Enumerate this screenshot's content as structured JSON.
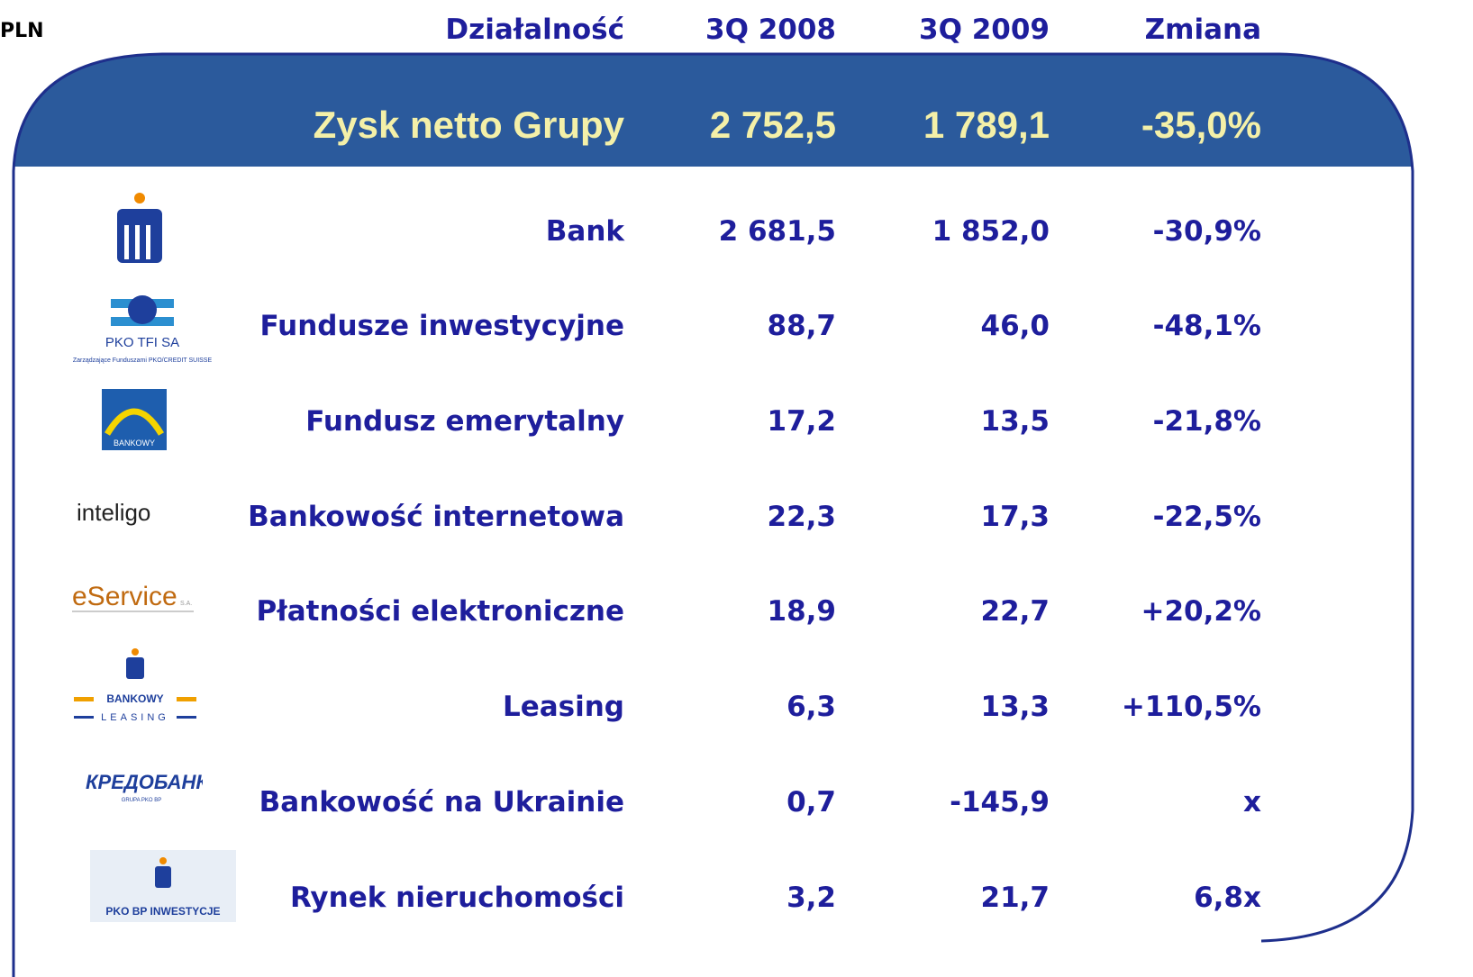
{
  "unit": "PLN",
  "header": [
    "Działalność",
    "3Q 2008",
    "3Q 2009",
    "Zmiana"
  ],
  "highlight": [
    "Zysk netto Grupy",
    "2 752,5",
    "1 789,1",
    "-35,0%"
  ],
  "rows": [
    [
      "Bank",
      "2 681,5",
      "1 852,0",
      "-30,9%"
    ],
    [
      "Fundusze inwestycyjne",
      "88,7",
      "46,0",
      "-48,1%"
    ],
    [
      "Fundusz emerytalny",
      "17,2",
      "13,5",
      "-21,8%"
    ],
    [
      "Bankowość internetowa",
      "22,3",
      "17,3",
      "-22,5%"
    ],
    [
      "Płatności elektroniczne",
      "18,9",
      "22,7",
      "+20,2%"
    ],
    [
      "Leasing",
      "6,3",
      "13,3",
      "+110,5%"
    ],
    [
      "Bankowość na Ukrainie",
      "0,7",
      "-145,9",
      "x"
    ],
    [
      "Rynek nieruchomości",
      "3,2",
      "21,7",
      "6,8x"
    ]
  ],
  "logos": {
    "tfi": [
      "PKO TFI SA",
      "Zarządzające Funduszami PKO/CREDIT SUISSE"
    ],
    "pension": "BANKOWY",
    "inteligo": "inteligo",
    "eservice": [
      "eService",
      "S.A."
    ],
    "leasing": [
      "BANKOWY",
      "LEASING"
    ],
    "kredobank": [
      "КРЕДОБАНК",
      "GRUPA PKO BP"
    ],
    "inwestycje": "PKO BP INWESTYCJE"
  }
}
